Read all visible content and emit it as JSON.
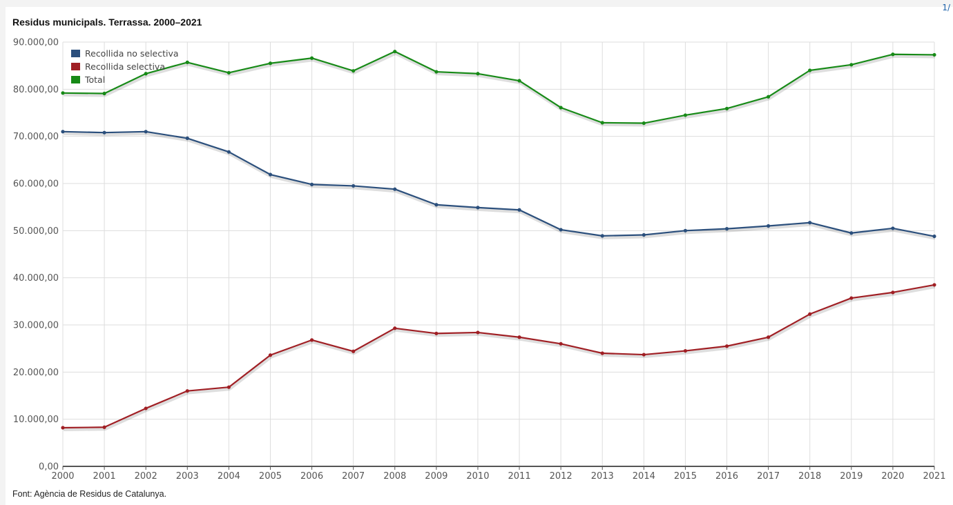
{
  "chart_data": {
    "type": "line",
    "title": "Residus municipals. Terrassa. 2000–2021",
    "source": "Font: Agència de Residus de Catalunya.",
    "xlabel": "",
    "ylabel": "",
    "ylim": [
      0,
      90000
    ],
    "y_ticks": [
      "0,00",
      "10.000,00",
      "20.000,00",
      "30.000,00",
      "40.000,00",
      "50.000,00",
      "60.000,00",
      "70.000,00",
      "80.000,00",
      "90.000,00"
    ],
    "grid": true,
    "legend_position": "top-left",
    "x": [
      "2000",
      "2001",
      "2002",
      "2003",
      "2004",
      "2005",
      "2006",
      "2007",
      "2008",
      "2009",
      "2010",
      "2011",
      "2012",
      "2013",
      "2014",
      "2015",
      "2016",
      "2017",
      "2018",
      "2019",
      "2020",
      "2021"
    ],
    "series": [
      {
        "name": "Recollida no selectiva",
        "color": "#2b4f7c",
        "values": [
          71000,
          70800,
          71000,
          69600,
          66700,
          61900,
          59800,
          59500,
          58800,
          55500,
          54900,
          54400,
          50200,
          48900,
          49100,
          50000,
          50400,
          51000,
          51700,
          49500,
          50500,
          48800
        ]
      },
      {
        "name": "Recollida selectiva",
        "color": "#a01f24",
        "values": [
          8200,
          8300,
          12300,
          16000,
          16800,
          23600,
          26800,
          24400,
          29300,
          28200,
          28400,
          27400,
          26000,
          24000,
          23700,
          24500,
          25500,
          27400,
          32300,
          35700,
          36900,
          38500
        ]
      },
      {
        "name": "Total",
        "color": "#178a17",
        "values": [
          79200,
          79100,
          83300,
          85700,
          83500,
          85500,
          86600,
          83900,
          88000,
          83700,
          83300,
          81800,
          76100,
          72900,
          72800,
          74500,
          75900,
          78400,
          84000,
          85200,
          87400,
          87300
        ]
      }
    ]
  },
  "corner_mark": "1/"
}
